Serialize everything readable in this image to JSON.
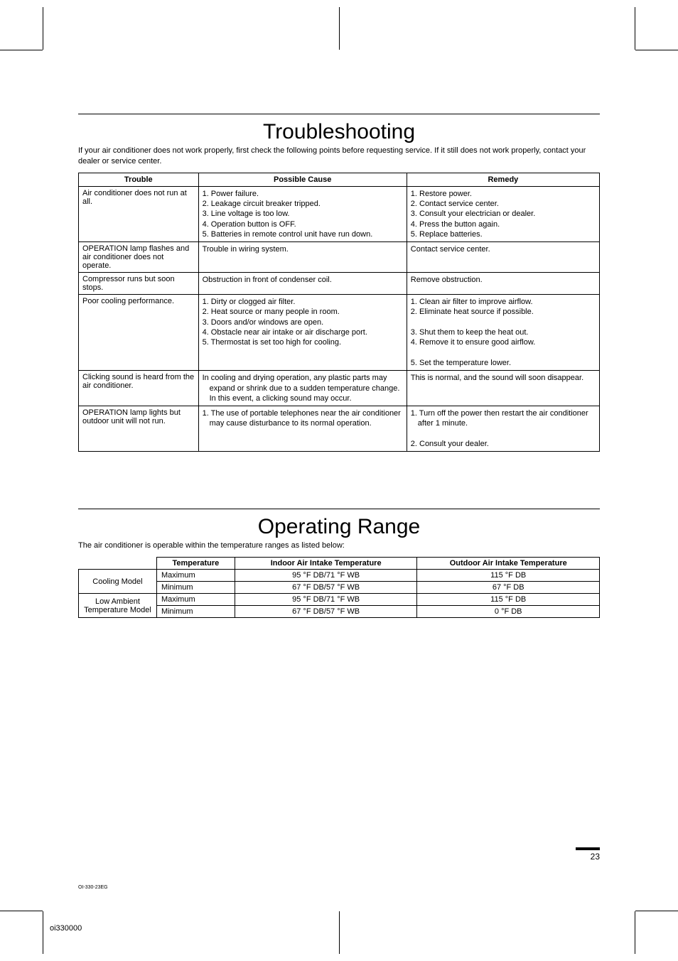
{
  "crop_marks": true,
  "section1": {
    "title": "Troubleshooting",
    "intro": "If your air conditioner does not work properly, first check the following points before requesting service. If it still does not work properly, contact your dealer or service center.",
    "headers": {
      "c1": "Trouble",
      "c2": "Possible Cause",
      "c3": "Remedy"
    },
    "rows": [
      {
        "trouble": "Air conditioner does not run at all.",
        "causes": [
          "1. Power failure.",
          "2. Leakage circuit breaker tripped.",
          "3. Line voltage is too low.",
          "4. Operation button is OFF.",
          "5. Batteries in remote control unit have run down."
        ],
        "cause_indents": [
          0,
          0,
          0,
          0,
          0
        ],
        "remedies": [
          "1. Restore power.",
          "2. Contact service center.",
          "3. Consult your electrician or dealer.",
          "4. Press the button again.",
          "5. Replace batteries."
        ]
      },
      {
        "trouble": "OPERATION lamp flashes and air conditioner does not operate.",
        "causes": [
          "Trouble in wiring system."
        ],
        "remedies": [
          "Contact service center."
        ]
      },
      {
        "trouble": "Compressor runs but soon stops.",
        "causes": [
          "Obstruction in front of condenser coil."
        ],
        "remedies": [
          "Remove obstruction."
        ]
      },
      {
        "trouble": "Poor cooling performance.",
        "causes": [
          "1. Dirty or clogged air filter.",
          "2. Heat source or many people in room.",
          "3. Doors and/or windows are open.",
          "4. Obstacle near air intake or air discharge port.",
          "5. Thermostat is set too high for cooling."
        ],
        "remedies": [
          "1. Clean air filter to improve airflow.",
          "2. Eliminate heat source if possible.",
          " ",
          "3. Shut them to keep the heat out.",
          "4. Remove it to ensure good airflow.",
          " ",
          "5. Set the temperature lower."
        ]
      },
      {
        "trouble": "Clicking sound is heard from the air conditioner.",
        "causes": [
          "In cooling and drying operation, any plastic parts may expand or shrink due to a sudden temperature change. In this event, a clicking sound may occur."
        ],
        "remedies": [
          "This is normal, and the sound will soon disappear."
        ]
      },
      {
        "trouble": "OPERATION lamp lights but outdoor unit will not run.",
        "causes": [
          "1. The use of portable telephones near the air conditioner may cause disturbance to its normal operation."
        ],
        "remedies": [
          "1. Turn off the power then restart the air conditioner after 1 minute.",
          " ",
          "2. Consult your dealer."
        ]
      }
    ]
  },
  "section2": {
    "title": "Operating Range",
    "intro": "The air conditioner is operable within the temperature ranges as listed below:",
    "headers": {
      "c1": "",
      "c2": "Temperature",
      "c3": "Indoor Air Intake Temperature",
      "c4": "Outdoor Air Intake Temperature"
    },
    "groups": [
      {
        "label": "Cooling Model",
        "rows": [
          {
            "t": "Maximum",
            "indoor": "95 °F DB/71 °F WB",
            "outdoor": "115 °F DB"
          },
          {
            "t": "Minimum",
            "indoor": "67 °F DB/57 °F WB",
            "outdoor": "67 °F DB"
          }
        ]
      },
      {
        "label": "Low Ambient Temperature Model",
        "rows": [
          {
            "t": "Maximum",
            "indoor": "95 °F DB/71 °F WB",
            "outdoor": "115 °F DB"
          },
          {
            "t": "Minimum",
            "indoor": "67 °F DB/57 °F WB",
            "outdoor": "0 °F DB"
          }
        ]
      }
    ]
  },
  "footer": {
    "doc_id": "OI-330-23EG",
    "page_num": "23",
    "ident": "oi330000"
  }
}
